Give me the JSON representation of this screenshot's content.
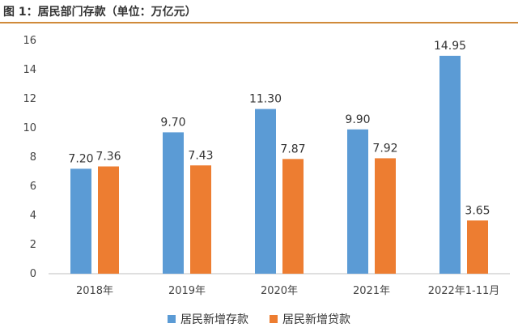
{
  "title": "图 1：居民部门存款（单位：万亿元）",
  "chart_data": {
    "type": "bar",
    "title": "图 1：居民部门存款（单位：万亿元）",
    "categories": [
      "2018年",
      "2019年",
      "2020年",
      "2021年",
      "2022年1-11月"
    ],
    "series": [
      {
        "name": "居民新增存款",
        "color": "#5b9bd5",
        "values": [
          7.2,
          9.7,
          11.3,
          9.9,
          14.95
        ],
        "labels": [
          "7.20",
          "9.70",
          "11.30",
          "9.90",
          "14.95"
        ]
      },
      {
        "name": "居民新增贷款",
        "color": "#ed7d31",
        "values": [
          7.36,
          7.43,
          7.87,
          7.92,
          3.65
        ],
        "labels": [
          "7.36",
          "7.43",
          "7.87",
          "7.92",
          "3.65"
        ]
      }
    ],
    "ylim": [
      0,
      16
    ],
    "yticks": [
      0,
      2,
      4,
      6,
      8,
      10,
      12,
      14,
      16
    ],
    "grid": false,
    "legend": "bottom",
    "xlabel": "",
    "ylabel": ""
  }
}
